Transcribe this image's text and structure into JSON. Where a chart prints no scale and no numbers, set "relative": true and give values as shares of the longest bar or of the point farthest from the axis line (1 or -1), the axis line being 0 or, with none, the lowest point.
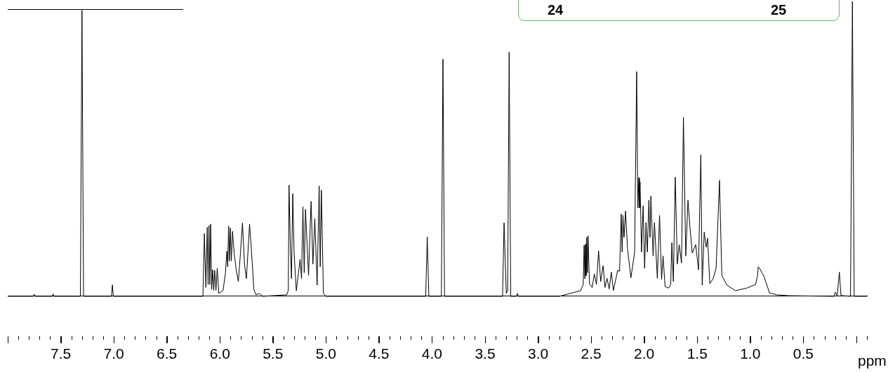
{
  "chart_data": {
    "type": "line",
    "relative": true,
    "xlabel": "ppm",
    "annotations": [
      "24",
      "25"
    ],
    "color": "#000000",
    "marker": "none",
    "grid": false,
    "legend": false,
    "xlim": [
      8.0,
      -0.1
    ],
    "xticks": [
      7.5,
      {
        "value": 7.0,
        "label": "7.0"
      },
      6.5,
      {
        "value": 6.0,
        "label": "6.0"
      },
      5.5,
      {
        "value": 5.0,
        "label": "5.0"
      },
      4.5,
      {
        "value": 4.0,
        "label": "4.0"
      },
      3.5,
      {
        "value": 3.0,
        "label": "3.0"
      },
      2.5,
      {
        "value": 2.0,
        "label": "2.0"
      },
      1.5,
      {
        "value": 1.0,
        "label": "1.0"
      },
      0.5
    ],
    "x": [
      8.0,
      7.76,
      7.75,
      7.74,
      7.58,
      7.572,
      7.565,
      7.315,
      7.3,
      7.285,
      7.022,
      7.013,
      7.004,
      6.16,
      6.146,
      6.132,
      6.119,
      6.111,
      6.103,
      6.095,
      6.087,
      6.077,
      6.068,
      6.058,
      6.049,
      6.037,
      6.025,
      6.01,
      5.97,
      5.948,
      5.934,
      5.926,
      5.918,
      5.91,
      5.902,
      5.892,
      5.881,
      5.865,
      5.846,
      5.826,
      5.806,
      5.787,
      5.768,
      5.75,
      5.72,
      5.701,
      5.68,
      5.66,
      5.627,
      5.6,
      5.37,
      5.355,
      5.348,
      5.335,
      5.325,
      5.313,
      5.3,
      5.279,
      5.244,
      5.23,
      5.217,
      5.205,
      5.193,
      5.164,
      5.14,
      5.123,
      5.105,
      5.083,
      5.064,
      5.054,
      5.043,
      5.024,
      5.0,
      4.06,
      4.045,
      4.03,
      3.912,
      3.897,
      3.882,
      3.335,
      3.321,
      3.3,
      3.287,
      3.273,
      3.258,
      3.205,
      3.195,
      3.185,
      2.8,
      2.6,
      2.575,
      2.566,
      2.559,
      2.553,
      2.548,
      2.542,
      2.535,
      2.529,
      2.516,
      2.49,
      2.47,
      2.45,
      2.43,
      2.41,
      2.387,
      2.37,
      2.35,
      2.33,
      2.31,
      2.29,
      2.25,
      2.232,
      2.216,
      2.208,
      2.2,
      2.19,
      2.176,
      2.157,
      2.125,
      2.09,
      2.071,
      2.06,
      2.05,
      2.045,
      2.039,
      2.025,
      2.01,
      1.996,
      1.983,
      1.97,
      1.956,
      1.945,
      1.937,
      1.916,
      1.903,
      1.876,
      1.855,
      1.836,
      1.822,
      1.803,
      1.77,
      1.75,
      1.739,
      1.725,
      1.707,
      1.688,
      1.67,
      1.648,
      1.63,
      1.608,
      1.587,
      1.568,
      1.547,
      1.514,
      1.488,
      1.466,
      1.453,
      1.434,
      1.415,
      1.402,
      1.381,
      1.35,
      1.322,
      1.29,
      1.268,
      1.22,
      1.14,
      1.033,
      0.95,
      0.931,
      0.925,
      0.912,
      0.89,
      0.872,
      0.819,
      0.75,
      0.63,
      0.21,
      0.198,
      0.18,
      0.16,
      0.145,
      0.123,
      0.055,
      0.037,
      0.02,
      -0.1
    ],
    "values": [
      0,
      0,
      0.007,
      0,
      0,
      0.008,
      0,
      0,
      0.97,
      0,
      0,
      0.039,
      0,
      0,
      0.213,
      0.03,
      0.234,
      0.04,
      0.24,
      0.04,
      0.245,
      0.024,
      0.09,
      0.02,
      0.088,
      0.02,
      0.095,
      0.01,
      0.02,
      0.078,
      0.153,
      0.1,
      0.238,
      0.12,
      0.232,
      0.12,
      0.22,
      0.146,
      0.09,
      0.05,
      0.146,
      0.249,
      0.109,
      0.06,
      0.245,
      0.149,
      0.024,
      0.005,
      0.01,
      0,
      0.005,
      0.02,
      0.377,
      0.163,
      0.06,
      0.348,
      0.144,
      0.019,
      0.125,
      0.06,
      0.304,
      0.08,
      0.295,
      0.071,
      0.322,
      0.109,
      0.264,
      0.038,
      0.374,
      0.1,
      0.36,
      0.01,
      0,
      0,
      0.201,
      0,
      0,
      0.804,
      0,
      0,
      0.249,
      0.01,
      0.02,
      0.828,
      0,
      0,
      0.01,
      0,
      0,
      0.019,
      0.04,
      0.173,
      0.06,
      0.177,
      0.07,
      0.2,
      0.08,
      0.205,
      0.042,
      0.03,
      0.076,
      0.04,
      0.154,
      0.05,
      0.104,
      0.03,
      0.061,
      0.025,
      0.082,
      0.02,
      0.088,
      0.085,
      0.279,
      0.15,
      0.274,
      0.2,
      0.289,
      0.161,
      0.063,
      0.15,
      0.762,
      0.3,
      0.402,
      0.3,
      0.388,
      0.15,
      0.307,
      0.095,
      0.25,
      0.15,
      0.326,
      0.2,
      0.34,
      0.137,
      0.25,
      0.061,
      0.274,
      0.057,
      0.137,
      0.033,
      0.028,
      0.04,
      0.182,
      0.05,
      0.404,
      0.109,
      0.175,
      0.113,
      0.607,
      0.137,
      0.326,
      0.232,
      0.147,
      0.175,
      0.09,
      0.48,
      0.038,
      0.218,
      0.166,
      0.197,
      0.043,
      0.06,
      0.095,
      0.393,
      0.071,
      0.038,
      0.019,
      0.028,
      0.04,
      0.071,
      0.1,
      0.095,
      0.08,
      0.069,
      0.012,
      0.005,
      0.002,
      0,
      0.014,
      0.002,
      0.082,
      0.003,
      0.002,
      0,
      1,
      0,
      0
    ]
  }
}
